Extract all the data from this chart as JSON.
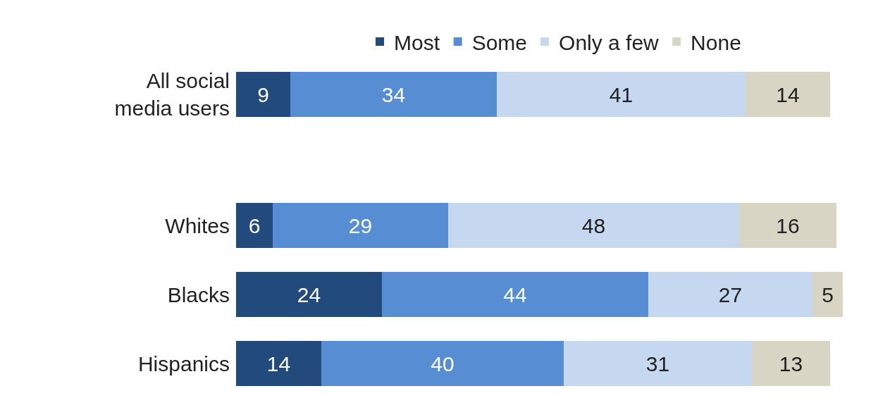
{
  "chart_data": {
    "type": "bar",
    "orientation": "horizontal",
    "stacked": true,
    "data_labels": true,
    "legend": "top",
    "tick_labels": "y",
    "categories": [
      "All social media users",
      "Whites",
      "Blacks",
      "Hispanics"
    ],
    "series": [
      {
        "name": "Most",
        "color": "#234a7d",
        "values": [
          9,
          6,
          24,
          14
        ]
      },
      {
        "name": "Some",
        "color": "#568dd3",
        "values": [
          34,
          29,
          44,
          40
        ]
      },
      {
        "name": "Only a few",
        "color": "#c5d8ef",
        "values": [
          41,
          48,
          27,
          31
        ]
      },
      {
        "name": "None",
        "color": "#d9d5c5",
        "values": [
          14,
          16,
          5,
          13
        ]
      }
    ]
  }
}
